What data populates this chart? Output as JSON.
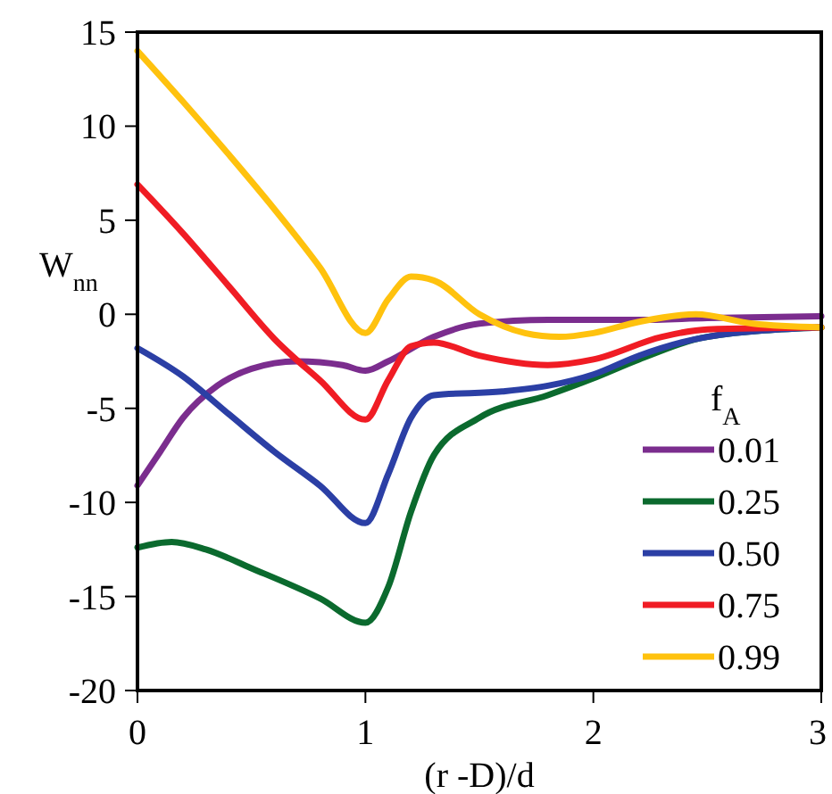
{
  "chart_data": {
    "type": "line",
    "xlabel": "(r -D)/d",
    "ylabel": "W$_{nn}$",
    "legend_title": "f$_{A}$",
    "legend": "bottom right",
    "xlim": [
      0,
      3
    ],
    "xticks": [
      0,
      1,
      2,
      3
    ],
    "ylim": [
      -20,
      15
    ],
    "yticks": [
      -20,
      -15,
      -10,
      -5,
      0,
      5,
      10,
      15
    ],
    "grid": false,
    "marker": "none",
    "line_style": "solid",
    "series": [
      {
        "name": "0.01",
        "color": "#7b2d8e",
        "x": [
          0,
          0.1,
          0.2,
          0.35,
          0.5,
          0.7,
          0.9,
          1.0,
          1.1,
          1.3,
          1.5,
          1.8,
          2.2,
          2.5,
          3
        ],
        "values": [
          -9.1,
          -7.3,
          -5.5,
          -3.8,
          -2.9,
          -2.5,
          -2.7,
          -3.0,
          -2.5,
          -1.2,
          -0.5,
          -0.3,
          -0.3,
          -0.2,
          -0.1
        ]
      },
      {
        "name": "0.25",
        "color": "#0b6a2e",
        "x": [
          0,
          0.15,
          0.3,
          0.5,
          0.8,
          1.0,
          1.1,
          1.2,
          1.3,
          1.5,
          1.8,
          2.0,
          2.2,
          2.5,
          3
        ],
        "values": [
          -12.4,
          -12.1,
          -12.5,
          -13.5,
          -15.1,
          -16.4,
          -14.5,
          -10.5,
          -7.5,
          -5.5,
          -4.3,
          -3.4,
          -2.4,
          -1.2,
          -0.7
        ]
      },
      {
        "name": "0.50",
        "color": "#2b3fa5",
        "x": [
          0,
          0.2,
          0.4,
          0.6,
          0.8,
          1.0,
          1.1,
          1.2,
          1.3,
          1.6,
          1.8,
          2.0,
          2.2,
          2.5,
          3
        ],
        "values": [
          -1.8,
          -3.3,
          -5.3,
          -7.3,
          -9.1,
          -11.1,
          -8.5,
          -5.5,
          -4.3,
          -4.1,
          -3.8,
          -3.2,
          -2.2,
          -1.2,
          -0.7
        ]
      },
      {
        "name": "0.75",
        "color": "#f01c24",
        "x": [
          0,
          0.2,
          0.4,
          0.6,
          0.8,
          1.0,
          1.1,
          1.2,
          1.3,
          1.5,
          1.8,
          2.0,
          2.3,
          2.5,
          3
        ],
        "values": [
          6.9,
          4.3,
          1.5,
          -1.3,
          -3.5,
          -5.6,
          -3.5,
          -1.7,
          -1.5,
          -2.2,
          -2.7,
          -2.4,
          -1.2,
          -0.8,
          -0.7
        ]
      },
      {
        "name": "0.99",
        "color": "#ffc20e",
        "x": [
          0,
          0.2,
          0.4,
          0.6,
          0.8,
          1.0,
          1.1,
          1.2,
          1.3,
          1.5,
          1.7,
          1.85,
          2.0,
          2.2,
          2.45,
          2.7,
          3
        ],
        "values": [
          14,
          11.3,
          8.5,
          5.6,
          2.5,
          -1.0,
          0.8,
          2.0,
          1.8,
          0,
          -1.0,
          -1.2,
          -1.0,
          -0.4,
          0,
          -0.5,
          -0.7
        ]
      }
    ]
  }
}
